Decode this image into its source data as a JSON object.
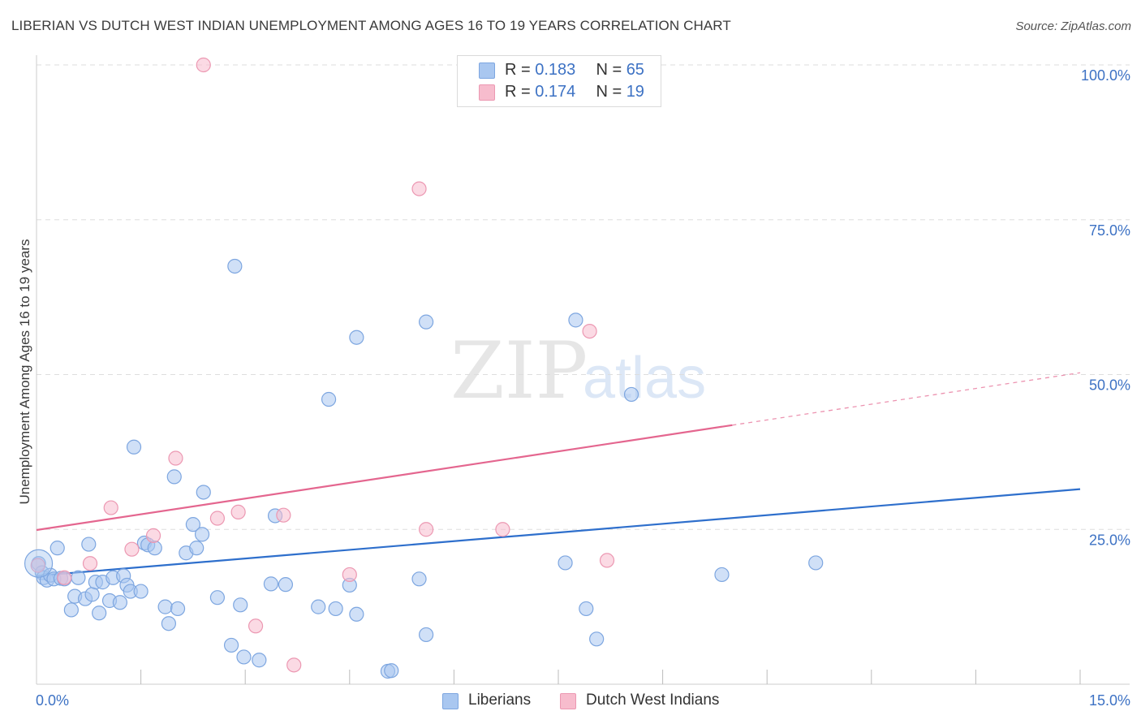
{
  "title": "LIBERIAN VS DUTCH WEST INDIAN UNEMPLOYMENT AMONG AGES 16 TO 19 YEARS CORRELATION CHART",
  "source": "Source: ZipAtlas.com",
  "watermark": {
    "zip": "ZIP",
    "atlas": "atlas"
  },
  "legend": {
    "rows": [
      {
        "r_label": "R =",
        "r_value": "0.183",
        "n_label": "N =",
        "n_value": "65"
      },
      {
        "r_label": "R =",
        "r_value": "0.174",
        "n_label": "N =",
        "n_value": "19"
      }
    ]
  },
  "bottom_legend": {
    "liberians": "Liberians",
    "dutch_west_indians": "Dutch West Indians"
  },
  "colors": {
    "blue_fill": "#a9c7f0",
    "blue_stroke": "#7da6e0",
    "blue_line": "#2e6fcc",
    "pink_fill": "#f7bccd",
    "pink_stroke": "#ec98b2",
    "pink_line": "#e4668f",
    "tick_label": "#3d72c4",
    "grid": "#dddddd"
  },
  "chart_data": {
    "type": "scatter",
    "title": "LIBERIAN VS DUTCH WEST INDIAN UNEMPLOYMENT AMONG AGES 16 TO 19 YEARS CORRELATION CHART",
    "xlabel": "",
    "ylabel": "Unemployment Among Ages 16 to 19 years",
    "xlim": [
      0,
      15
    ],
    "ylim": [
      0,
      100
    ],
    "x_tick_labels": [
      {
        "value": 0,
        "label": "0.0%"
      },
      {
        "value": 15,
        "label": "15.0%"
      }
    ],
    "y_tick_labels": [
      {
        "value": 25,
        "label": "25.0%"
      },
      {
        "value": 50,
        "label": "50.0%"
      },
      {
        "value": 75,
        "label": "75.0%"
      },
      {
        "value": 100,
        "label": "100.0%"
      }
    ],
    "x_minor_ticks": [
      1.5,
      3.0,
      4.5,
      6.0,
      7.5,
      9.0,
      10.5,
      12.0,
      13.5,
      15.0
    ],
    "series": [
      {
        "name": "Liberians",
        "color": "blue",
        "R": 0.183,
        "N": 65,
        "trend": {
          "x0": 0,
          "y0": 17.5,
          "x1": 15,
          "y1": 31.5,
          "solid_until": 15
        },
        "points": [
          [
            0.03,
            19.5
          ],
          [
            0.08,
            18.0
          ],
          [
            0.1,
            17.2
          ],
          [
            0.15,
            16.8
          ],
          [
            0.2,
            17.6
          ],
          [
            0.25,
            17.0
          ],
          [
            0.3,
            22.0
          ],
          [
            0.35,
            17.1
          ],
          [
            0.4,
            17.0
          ],
          [
            0.5,
            12.0
          ],
          [
            0.55,
            14.2
          ],
          [
            0.6,
            17.2
          ],
          [
            0.7,
            13.8
          ],
          [
            0.75,
            22.6
          ],
          [
            0.8,
            14.5
          ],
          [
            0.85,
            16.5
          ],
          [
            0.9,
            11.5
          ],
          [
            0.95,
            16.5
          ],
          [
            1.05,
            13.5
          ],
          [
            1.1,
            17.2
          ],
          [
            1.2,
            13.2
          ],
          [
            1.25,
            17.5
          ],
          [
            1.3,
            16.0
          ],
          [
            1.35,
            15.0
          ],
          [
            1.4,
            38.3
          ],
          [
            1.5,
            15.0
          ],
          [
            1.55,
            22.8
          ],
          [
            1.6,
            22.5
          ],
          [
            1.7,
            22.0
          ],
          [
            1.85,
            12.5
          ],
          [
            1.9,
            9.8
          ],
          [
            1.98,
            33.5
          ],
          [
            2.03,
            12.2
          ],
          [
            2.15,
            21.2
          ],
          [
            2.25,
            25.8
          ],
          [
            2.3,
            22.0
          ],
          [
            2.38,
            24.2
          ],
          [
            2.4,
            31.0
          ],
          [
            2.6,
            14.0
          ],
          [
            2.8,
            6.3
          ],
          [
            2.85,
            67.5
          ],
          [
            2.93,
            12.8
          ],
          [
            2.98,
            4.4
          ],
          [
            3.2,
            3.9
          ],
          [
            3.37,
            16.2
          ],
          [
            3.43,
            27.2
          ],
          [
            3.58,
            16.1
          ],
          [
            4.05,
            12.5
          ],
          [
            4.2,
            46.0
          ],
          [
            4.3,
            12.2
          ],
          [
            4.5,
            16.0
          ],
          [
            4.6,
            11.3
          ],
          [
            4.6,
            56.0
          ],
          [
            5.05,
            2.1
          ],
          [
            5.1,
            2.2
          ],
          [
            5.5,
            17.0
          ],
          [
            5.6,
            58.5
          ],
          [
            5.6,
            8.0
          ],
          [
            7.6,
            19.6
          ],
          [
            7.75,
            58.8
          ],
          [
            7.9,
            12.2
          ],
          [
            8.05,
            7.3
          ],
          [
            8.55,
            46.8
          ],
          [
            9.85,
            17.7
          ],
          [
            11.2,
            19.6
          ]
        ]
      },
      {
        "name": "Dutch West Indians",
        "color": "pink",
        "R": 0.174,
        "N": 19,
        "trend": {
          "x0": 0,
          "y0": 24.9,
          "x1": 15,
          "y1": 50.3,
          "solid_until": 10.0
        },
        "points": [
          [
            0.02,
            19.2
          ],
          [
            0.4,
            17.2
          ],
          [
            0.77,
            19.5
          ],
          [
            1.07,
            28.5
          ],
          [
            1.37,
            21.8
          ],
          [
            1.68,
            24.0
          ],
          [
            2.0,
            36.5
          ],
          [
            2.4,
            100.0
          ],
          [
            2.6,
            26.8
          ],
          [
            2.9,
            27.8
          ],
          [
            3.15,
            9.4
          ],
          [
            3.55,
            27.3
          ],
          [
            3.7,
            3.1
          ],
          [
            4.5,
            17.7
          ],
          [
            5.5,
            80.0
          ],
          [
            5.6,
            25.0
          ],
          [
            6.7,
            25.0
          ],
          [
            7.95,
            57.0
          ],
          [
            8.2,
            20.0
          ]
        ]
      }
    ]
  }
}
